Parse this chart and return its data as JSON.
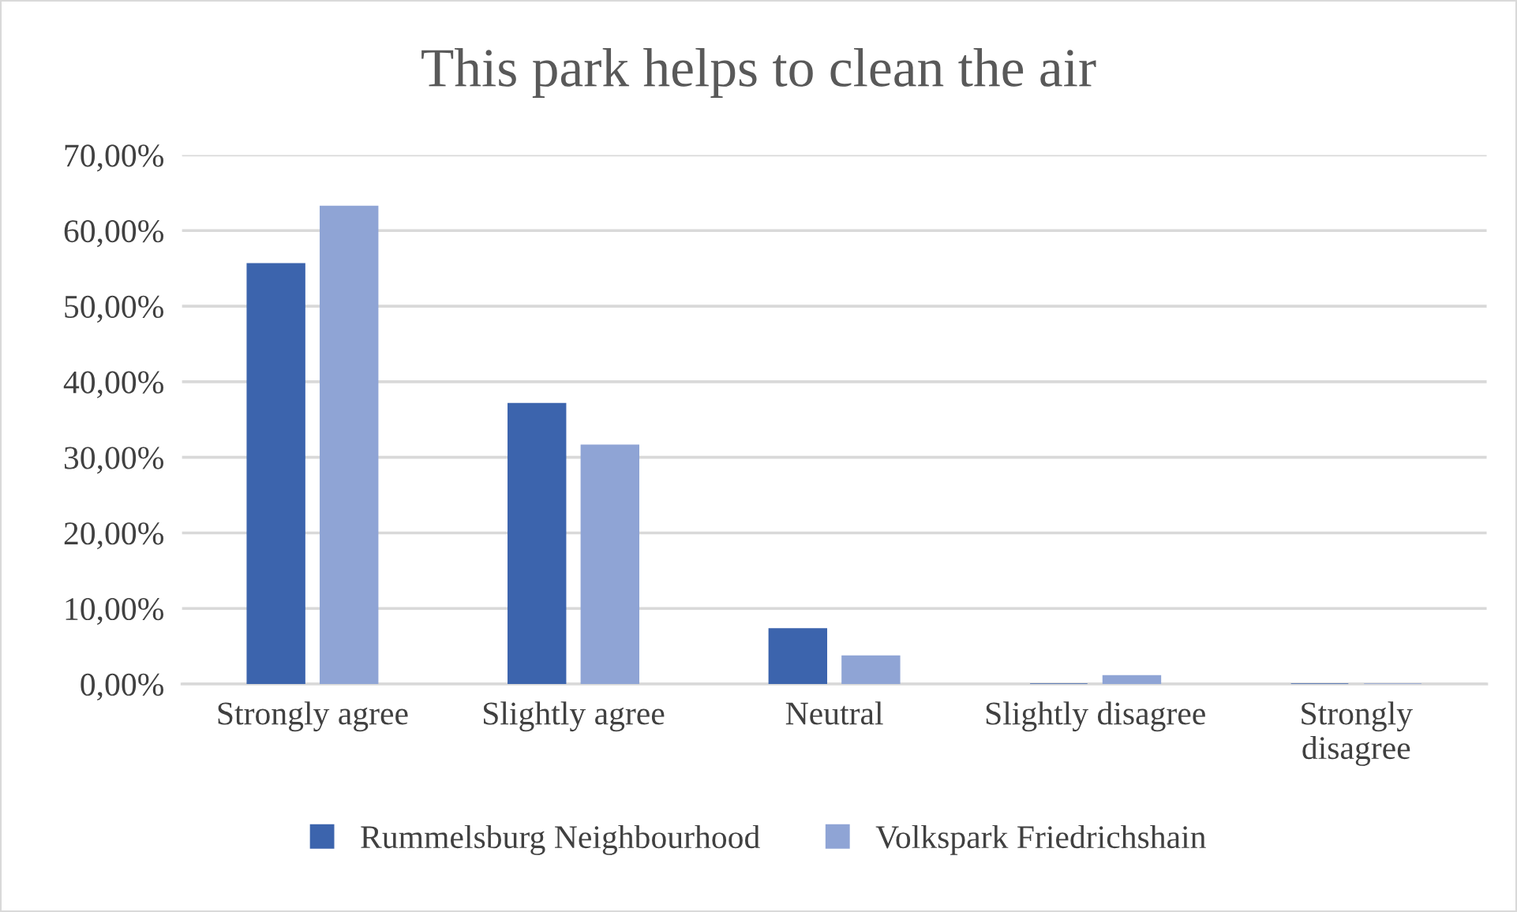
{
  "chart_data": {
    "type": "bar",
    "title": "This park helps to clean the air",
    "categories": [
      "Strongly agree",
      "Slightly agree",
      "Neutral",
      "Slightly disagree",
      "Strongly\ndisagree"
    ],
    "series": [
      {
        "name": "Rummelsburg Neighbourhood",
        "color": "#3c64ad",
        "values": [
          55.6,
          37.1,
          7.3,
          0,
          0
        ]
      },
      {
        "name": "Volkspark Friedrichshain",
        "color": "#8fa4d5",
        "values": [
          63.2,
          31.6,
          3.7,
          1.1,
          0
        ]
      }
    ],
    "ylim": [
      0,
      70
    ],
    "yticks": [
      {
        "value": 0,
        "label": "0,00%"
      },
      {
        "value": 10,
        "label": "10,00%"
      },
      {
        "value": 20,
        "label": "20,00%"
      },
      {
        "value": 30,
        "label": "30,00%"
      },
      {
        "value": 40,
        "label": "40,00%"
      },
      {
        "value": 50,
        "label": "50,00%"
      },
      {
        "value": 60,
        "label": "60,00%"
      },
      {
        "value": 70,
        "label": "70,00%"
      }
    ],
    "grid": "y",
    "legend": "bottom"
  }
}
